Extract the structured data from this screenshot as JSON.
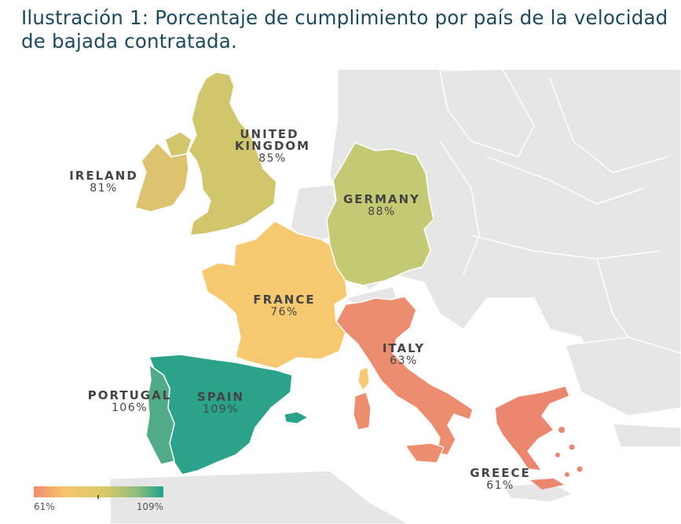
{
  "title": "Ilustración 1: Porcentaje de cumplimiento por país de la velocidad de bajada contratada.",
  "countries": {
    "united_kingdom": {
      "name_line1": "UNITED",
      "name_line2": "KINGDOM",
      "value": "85%",
      "color": "#d0c76d"
    },
    "ireland": {
      "name": "IRELAND",
      "value": "81%",
      "color": "#ddc36f"
    },
    "germany": {
      "name": "GERMANY",
      "value": "88%",
      "color": "#c4c973"
    },
    "france": {
      "name": "FRANCE",
      "value": "76%",
      "color": "#f6c86f"
    },
    "italy": {
      "name": "ITALY",
      "value": "63%",
      "color": "#ec8d6f"
    },
    "portugal": {
      "name": "PORTUGAL",
      "value": "106%",
      "color": "#4fac86"
    },
    "spain": {
      "name": "SPAIN",
      "value": "109%",
      "color": "#2aa38a"
    },
    "greece": {
      "name": "GREECE",
      "value": "61%",
      "color": "#ea876e"
    }
  },
  "legend": {
    "min_label": "61%",
    "max_label": "109%",
    "color_low": "#f08c6e",
    "color_mid": "#f5c56b",
    "color_high": "#1fa38d"
  },
  "colors": {
    "background_land": "#e6e6e6",
    "border": "#ffffff",
    "title": "#1c4a5c"
  }
}
